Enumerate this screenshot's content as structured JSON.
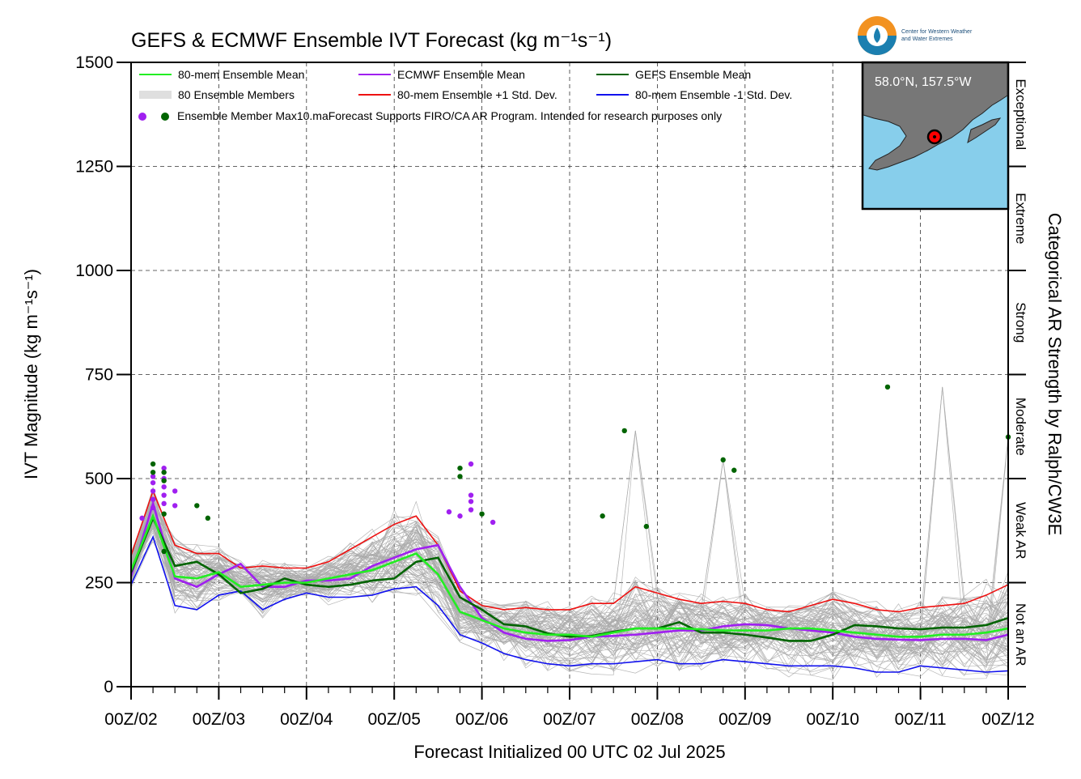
{
  "title": "GEFS & ECMWF Ensemble IVT Forecast (kg m⁻¹s⁻¹)",
  "logo": {
    "line1": "Center for Western Weather",
    "line2": "and Water Extremes"
  },
  "inset": {
    "location": "58.0°N, 157.5°W"
  },
  "legend": {
    "ens_mean": "80-mem Ensemble Mean",
    "ecmwf_mean": "ECMWF Ensemble Mean",
    "gefs_mean": "GEFS Ensemble Mean",
    "members": "80 Ensemble Members",
    "plus_sd": "80-mem Ensemble +1 Std. Dev.",
    "minus_sd": "80-mem Ensemble -1 Std. Dev.",
    "max_note": "Ensemble Member Max10.maForecast Supports FIRO/CA AR Program. Intended for research purposes only"
  },
  "colors": {
    "ens_mean": "#22ee22",
    "ecmwf": "#a020f0",
    "gefs": "#006400",
    "plus_sd": "#ee1111",
    "minus_sd": "#1111ee",
    "members": "#aaaaaa",
    "ocean": "#87ceeb",
    "land": "#777777"
  },
  "categories": {
    "title": "Categorical AR Strength by Ralph/CW3E",
    "labels": [
      {
        "label": "Not an AR",
        "from": 0,
        "to": 250
      },
      {
        "label": "Weak AR",
        "from": 250,
        "to": 500
      },
      {
        "label": "Moderate",
        "from": 500,
        "to": 750
      },
      {
        "label": "Strong",
        "from": 750,
        "to": 1000
      },
      {
        "label": "Extreme",
        "from": 1000,
        "to": 1250
      },
      {
        "label": "Exceptional",
        "from": 1250,
        "to": 1500
      }
    ]
  },
  "chart_data": {
    "type": "line",
    "xlabel": "Forecast Initialized 00 UTC 02 Jul 2025",
    "ylabel": "IVT Magnitude (kg m⁻¹s⁻¹)",
    "ylim": [
      0,
      1500
    ],
    "xlim": [
      0,
      240
    ],
    "yticks": [
      0,
      250,
      500,
      750,
      1000,
      1250,
      1500
    ],
    "xticks": [
      {
        "t": 0,
        "label": "00Z/02"
      },
      {
        "t": 24,
        "label": "00Z/03"
      },
      {
        "t": 48,
        "label": "00Z/04"
      },
      {
        "t": 72,
        "label": "00Z/05"
      },
      {
        "t": 96,
        "label": "00Z/06"
      },
      {
        "t": 120,
        "label": "00Z/07"
      },
      {
        "t": 144,
        "label": "00Z/08"
      },
      {
        "t": 168,
        "label": "00Z/09"
      },
      {
        "t": 192,
        "label": "00Z/10"
      },
      {
        "t": 216,
        "label": "00Z/11"
      },
      {
        "t": 240,
        "label": "00Z/12"
      }
    ],
    "grid": true,
    "x": [
      0,
      6,
      12,
      18,
      24,
      30,
      36,
      42,
      48,
      54,
      60,
      66,
      72,
      78,
      84,
      90,
      96,
      102,
      108,
      114,
      120,
      126,
      132,
      138,
      144,
      150,
      156,
      162,
      168,
      174,
      180,
      186,
      192,
      198,
      204,
      210,
      216,
      222,
      228,
      234,
      240
    ],
    "series": [
      {
        "name": "80-mem Ensemble +1 Std. Dev.",
        "key": "plus_sd",
        "values": [
          315,
          470,
          340,
          320,
          320,
          285,
          290,
          285,
          285,
          300,
          330,
          360,
          390,
          410,
          340,
          230,
          195,
          185,
          190,
          185,
          185,
          200,
          200,
          240,
          225,
          210,
          200,
          205,
          200,
          185,
          180,
          195,
          210,
          200,
          185,
          180,
          190,
          195,
          200,
          220,
          245
        ]
      },
      {
        "name": "80-mem Ensemble Mean",
        "key": "ens_mean",
        "values": [
          280,
          410,
          265,
          260,
          275,
          240,
          245,
          250,
          250,
          260,
          270,
          280,
          300,
          320,
          270,
          180,
          160,
          140,
          130,
          125,
          125,
          120,
          130,
          140,
          140,
          140,
          138,
          135,
          135,
          135,
          140,
          140,
          135,
          130,
          125,
          120,
          120,
          125,
          125,
          130,
          140
        ]
      },
      {
        "name": "ECMWF Ensemble Mean",
        "key": "ecmwf",
        "values": [
          265,
          440,
          260,
          240,
          270,
          295,
          240,
          240,
          255,
          255,
          260,
          290,
          310,
          330,
          340,
          240,
          165,
          130,
          115,
          110,
          112,
          120,
          122,
          125,
          130,
          135,
          135,
          145,
          150,
          148,
          140,
          135,
          130,
          120,
          115,
          113,
          112,
          115,
          115,
          112,
          125
        ]
      },
      {
        "name": "GEFS Ensemble Mean",
        "key": "gefs",
        "values": [
          275,
          405,
          290,
          300,
          270,
          225,
          235,
          260,
          245,
          240,
          245,
          255,
          260,
          300,
          310,
          215,
          185,
          150,
          145,
          128,
          120,
          122,
          132,
          140,
          140,
          155,
          130,
          130,
          125,
          118,
          110,
          110,
          125,
          148,
          145,
          140,
          138,
          142,
          142,
          148,
          165
        ]
      },
      {
        "name": "80-mem Ensemble -1 Std. Dev.",
        "key": "minus_sd",
        "values": [
          245,
          360,
          195,
          185,
          220,
          230,
          185,
          210,
          225,
          215,
          215,
          220,
          235,
          240,
          195,
          125,
          105,
          80,
          65,
          55,
          50,
          55,
          55,
          60,
          65,
          55,
          55,
          65,
          60,
          55,
          50,
          50,
          50,
          45,
          35,
          35,
          50,
          45,
          40,
          35,
          38
        ]
      }
    ],
    "member_peaks": [
      {
        "t": 137,
        "v": 615
      },
      {
        "t": 162,
        "v": 545
      },
      {
        "t": 165,
        "v": 520
      },
      {
        "t": 221,
        "v": 720
      },
      {
        "t": 240,
        "v": 600
      }
    ],
    "max_points": {
      "ecmwf": [
        {
          "t": 3,
          "v": 405
        },
        {
          "t": 6,
          "v": 505
        },
        {
          "t": 6,
          "v": 490
        },
        {
          "t": 6,
          "v": 470
        },
        {
          "t": 6,
          "v": 450
        },
        {
          "t": 6,
          "v": 430
        },
        {
          "t": 9,
          "v": 525
        },
        {
          "t": 9,
          "v": 500
        },
        {
          "t": 9,
          "v": 480
        },
        {
          "t": 9,
          "v": 460
        },
        {
          "t": 9,
          "v": 440
        },
        {
          "t": 12,
          "v": 470
        },
        {
          "t": 12,
          "v": 435
        },
        {
          "t": 87,
          "v": 420
        },
        {
          "t": 90,
          "v": 410
        },
        {
          "t": 93,
          "v": 535
        },
        {
          "t": 93,
          "v": 460
        },
        {
          "t": 93,
          "v": 445
        },
        {
          "t": 93,
          "v": 425
        },
        {
          "t": 99,
          "v": 395
        }
      ],
      "gefs": [
        {
          "t": 6,
          "v": 535
        },
        {
          "t": 6,
          "v": 515
        },
        {
          "t": 9,
          "v": 515
        },
        {
          "t": 9,
          "v": 495
        },
        {
          "t": 9,
          "v": 415
        },
        {
          "t": 9,
          "v": 325
        },
        {
          "t": 18,
          "v": 435
        },
        {
          "t": 21,
          "v": 405
        },
        {
          "t": 90,
          "v": 525
        },
        {
          "t": 90,
          "v": 505
        },
        {
          "t": 96,
          "v": 415
        },
        {
          "t": 129,
          "v": 410
        },
        {
          "t": 135,
          "v": 615
        },
        {
          "t": 141,
          "v": 385
        },
        {
          "t": 162,
          "v": 545
        },
        {
          "t": 165,
          "v": 520
        },
        {
          "t": 207,
          "v": 720
        },
        {
          "t": 240,
          "v": 600
        }
      ]
    }
  }
}
